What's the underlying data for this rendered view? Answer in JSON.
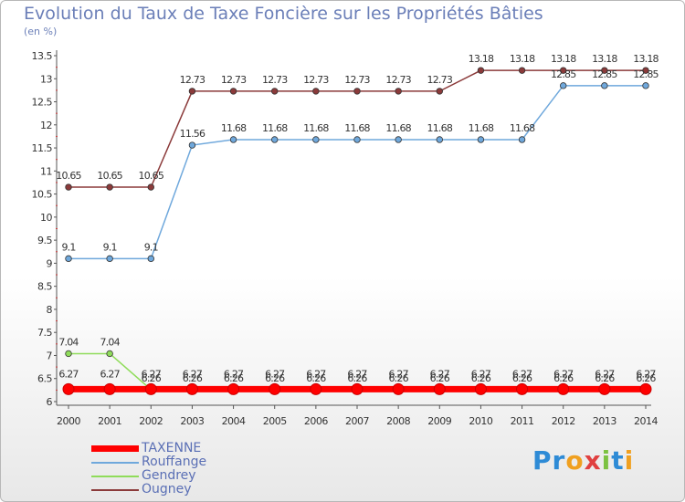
{
  "chart_data": {
    "type": "line",
    "title": "Evolution du Taux de Taxe Foncière sur les Propriétés Bâties",
    "ylabel": "(en %)",
    "xlabel": "",
    "ylim": [
      6,
      13.5
    ],
    "yticks": [
      "6",
      "6.5",
      "7",
      "7.5",
      "8",
      "8.5",
      "9",
      "9.5",
      "10",
      "10.5",
      "11",
      "11.5",
      "12",
      "12.5",
      "13",
      "13.5"
    ],
    "categories": [
      "2000",
      "2001",
      "2002",
      "2003",
      "2004",
      "2005",
      "2006",
      "2007",
      "2008",
      "2009",
      "2010",
      "2011",
      "2012",
      "2013",
      "2014"
    ],
    "series": [
      {
        "name": "TAXENNE",
        "color": "#ff0000",
        "values": [
          6.27,
          6.27,
          6.27,
          6.27,
          6.27,
          6.27,
          6.27,
          6.27,
          6.27,
          6.27,
          6.27,
          6.27,
          6.27,
          6.27,
          6.27
        ],
        "labels": [
          "6.27",
          "6.27",
          "6.27",
          "6.27",
          "6.27",
          "6.27",
          "6.27",
          "6.27",
          "6.27",
          "6.27",
          "6.27",
          "6.27",
          "6.27",
          "6.27",
          "6.27"
        ]
      },
      {
        "name": "Rouffange",
        "color": "#6fa8dc",
        "values": [
          9.1,
          9.1,
          9.1,
          11.56,
          11.68,
          11.68,
          11.68,
          11.68,
          11.68,
          11.68,
          11.68,
          11.68,
          12.85,
          12.85,
          12.85
        ],
        "labels": [
          "9.1",
          "9.1",
          "9.1",
          "11.56",
          "11.68",
          "11.68",
          "11.68",
          "11.68",
          "11.68",
          "11.68",
          "11.68",
          "11.68",
          "12.85",
          "12.85",
          "12.85"
        ]
      },
      {
        "name": "Gendrey",
        "color": "#8fdc5a",
        "values": [
          7.04,
          7.04,
          6.26,
          6.26,
          6.26,
          6.26,
          6.26,
          6.26,
          6.26,
          6.26,
          6.26,
          6.26,
          6.26,
          6.26,
          6.26
        ],
        "labels": [
          "7.04",
          "7.04",
          "6.26",
          "6.26",
          "6.26",
          "6.26",
          "6.26",
          "6.26",
          "6.26",
          "6.26",
          "6.26",
          "6.26",
          "6.26",
          "6.26",
          "6.26"
        ]
      },
      {
        "name": "Ougney",
        "color": "#8b3a3a",
        "values": [
          10.65,
          10.65,
          10.65,
          12.73,
          12.73,
          12.73,
          12.73,
          12.73,
          12.73,
          12.73,
          13.18,
          13.18,
          13.18,
          13.18,
          13.18
        ],
        "labels": [
          "10.65",
          "10.65",
          "10.65",
          "12.73",
          "12.73",
          "12.73",
          "12.73",
          "12.73",
          "12.73",
          "12.73",
          "13.18",
          "13.18",
          "13.18",
          "13.18",
          "13.18"
        ]
      }
    ],
    "legend": "bottom-left"
  },
  "brand": {
    "logo_text": "Proxiti"
  }
}
